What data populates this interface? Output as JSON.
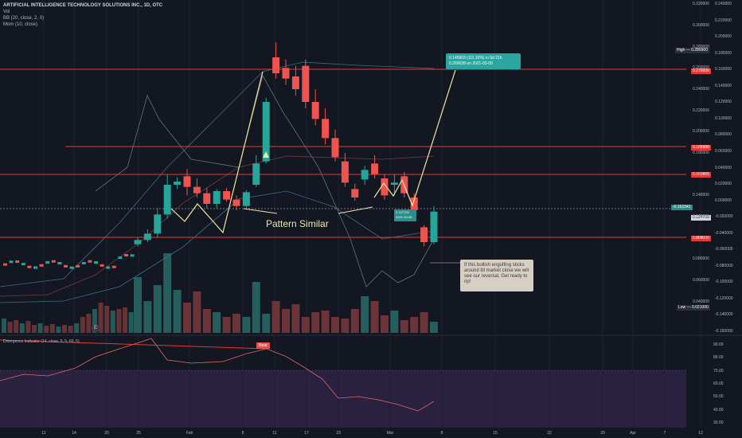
{
  "header": {
    "title": "ARTIFICIAL INTELLIGENCE TECHNOLOGY SOLUTIONS INC., 1D, OTC",
    "ind1": "Vol",
    "ind2": "BB (20, close, 2, 0)",
    "ind3": "Mom (10, close)",
    "osc": "Divergence Indicator (14, close, 5, 5, 60, 5)"
  },
  "labels": {
    "high": "High",
    "high_val": "0.289900",
    "low": "Low",
    "low_val": "0.021000",
    "lvl1": "0.270000",
    "lvl2": "0.189988",
    "lvl3": "0.160475",
    "lvl4": "0.094000",
    "cur_pct": "-0.152341",
    "cur_price": "0.124700",
    "measure_main": "0.145903 (111.10%) in 6d 21h",
    "measure_sub": "0.269638 on 2021-03-09",
    "measure2_top": "0.127725",
    "measure2_sub": "2021-03-08",
    "pattern": "Pattern Similar",
    "note": "If this bullish engulfing sticks around till market close we will see our reversal, Get ready to rip!",
    "bears": "Bear",
    "e": "E"
  },
  "colors": {
    "bg": "#131722",
    "bull": "#26a69a",
    "bear": "#ef5350",
    "level": "#e53935",
    "annot": "#f0e8a0",
    "bb": "#8a8f99"
  },
  "chart_data": {
    "type": "candlestick",
    "price_axis_left": [
      "0.320000",
      "0.300000",
      "0.280000",
      "0.260000",
      "0.240000",
      "0.220000",
      "0.200000",
      "0.180000",
      "0.160000",
      "0.140000",
      "0.120000",
      "0.100000",
      "0.080000",
      "0.060000",
      "0.040000"
    ],
    "price_axis_right": [
      "0.240000",
      "0.220000",
      "0.200000",
      "0.180000",
      "0.160000",
      "0.140000",
      "0.120000",
      "0.100000",
      "0.080000",
      "0.060000",
      "0.040000",
      "0.020000",
      "0.000000",
      "-0.020000",
      "-0.040000",
      "-0.060000",
      "-0.080000",
      "-0.100000",
      "-0.120000",
      "-0.140000",
      "-0.160000"
    ],
    "osc_axis": [
      "90.00",
      "80.00",
      "70.00",
      "60.00",
      "50.00",
      "40.00",
      "30.00"
    ],
    "x_labels": [
      "11",
      "14",
      "20",
      "25",
      "Feb",
      "8",
      "11",
      "17",
      "23",
      "Mar",
      "8",
      "15",
      "22",
      "29",
      "Apr",
      "7",
      "12"
    ],
    "candles": [
      [
        0.094,
        0.1,
        0.092,
        0.098
      ],
      [
        0.098,
        0.108,
        0.096,
        0.104
      ],
      [
        0.104,
        0.128,
        0.1,
        0.122
      ],
      [
        0.122,
        0.16,
        0.118,
        0.15
      ],
      [
        0.15,
        0.157,
        0.146,
        0.153
      ],
      [
        0.158,
        0.165,
        0.14,
        0.148
      ],
      [
        0.148,
        0.156,
        0.138,
        0.142
      ],
      [
        0.142,
        0.147,
        0.128,
        0.132
      ],
      [
        0.132,
        0.146,
        0.128,
        0.144
      ],
      [
        0.144,
        0.147,
        0.134,
        0.136
      ],
      [
        0.136,
        0.14,
        0.126,
        0.13
      ],
      [
        0.13,
        0.145,
        0.128,
        0.143
      ],
      [
        0.15,
        0.178,
        0.148,
        0.17
      ],
      [
        0.172,
        0.232,
        0.17,
        0.228
      ],
      [
        0.27,
        0.284,
        0.25,
        0.255
      ],
      [
        0.26,
        0.268,
        0.244,
        0.25
      ],
      [
        0.252,
        0.262,
        0.234,
        0.24
      ],
      [
        0.262,
        0.268,
        0.222,
        0.228
      ],
      [
        0.228,
        0.24,
        0.206,
        0.212
      ],
      [
        0.212,
        0.222,
        0.188,
        0.194
      ],
      [
        0.194,
        0.202,
        0.172,
        0.176
      ],
      [
        0.172,
        0.18,
        0.148,
        0.152
      ],
      [
        0.146,
        0.151,
        0.135,
        0.138
      ],
      [
        0.155,
        0.168,
        0.15,
        0.164
      ],
      [
        0.17,
        0.178,
        0.156,
        0.16
      ],
      [
        0.156,
        0.16,
        0.136,
        0.14
      ],
      [
        0.15,
        0.16,
        0.14,
        0.152
      ],
      [
        0.158,
        0.162,
        0.138,
        0.142
      ],
      [
        0.138,
        0.142,
        0.122,
        0.126
      ],
      [
        0.11,
        0.112,
        0.092,
        0.096
      ],
      [
        0.096,
        0.13,
        0.094,
        0.1247
      ]
    ]
  }
}
